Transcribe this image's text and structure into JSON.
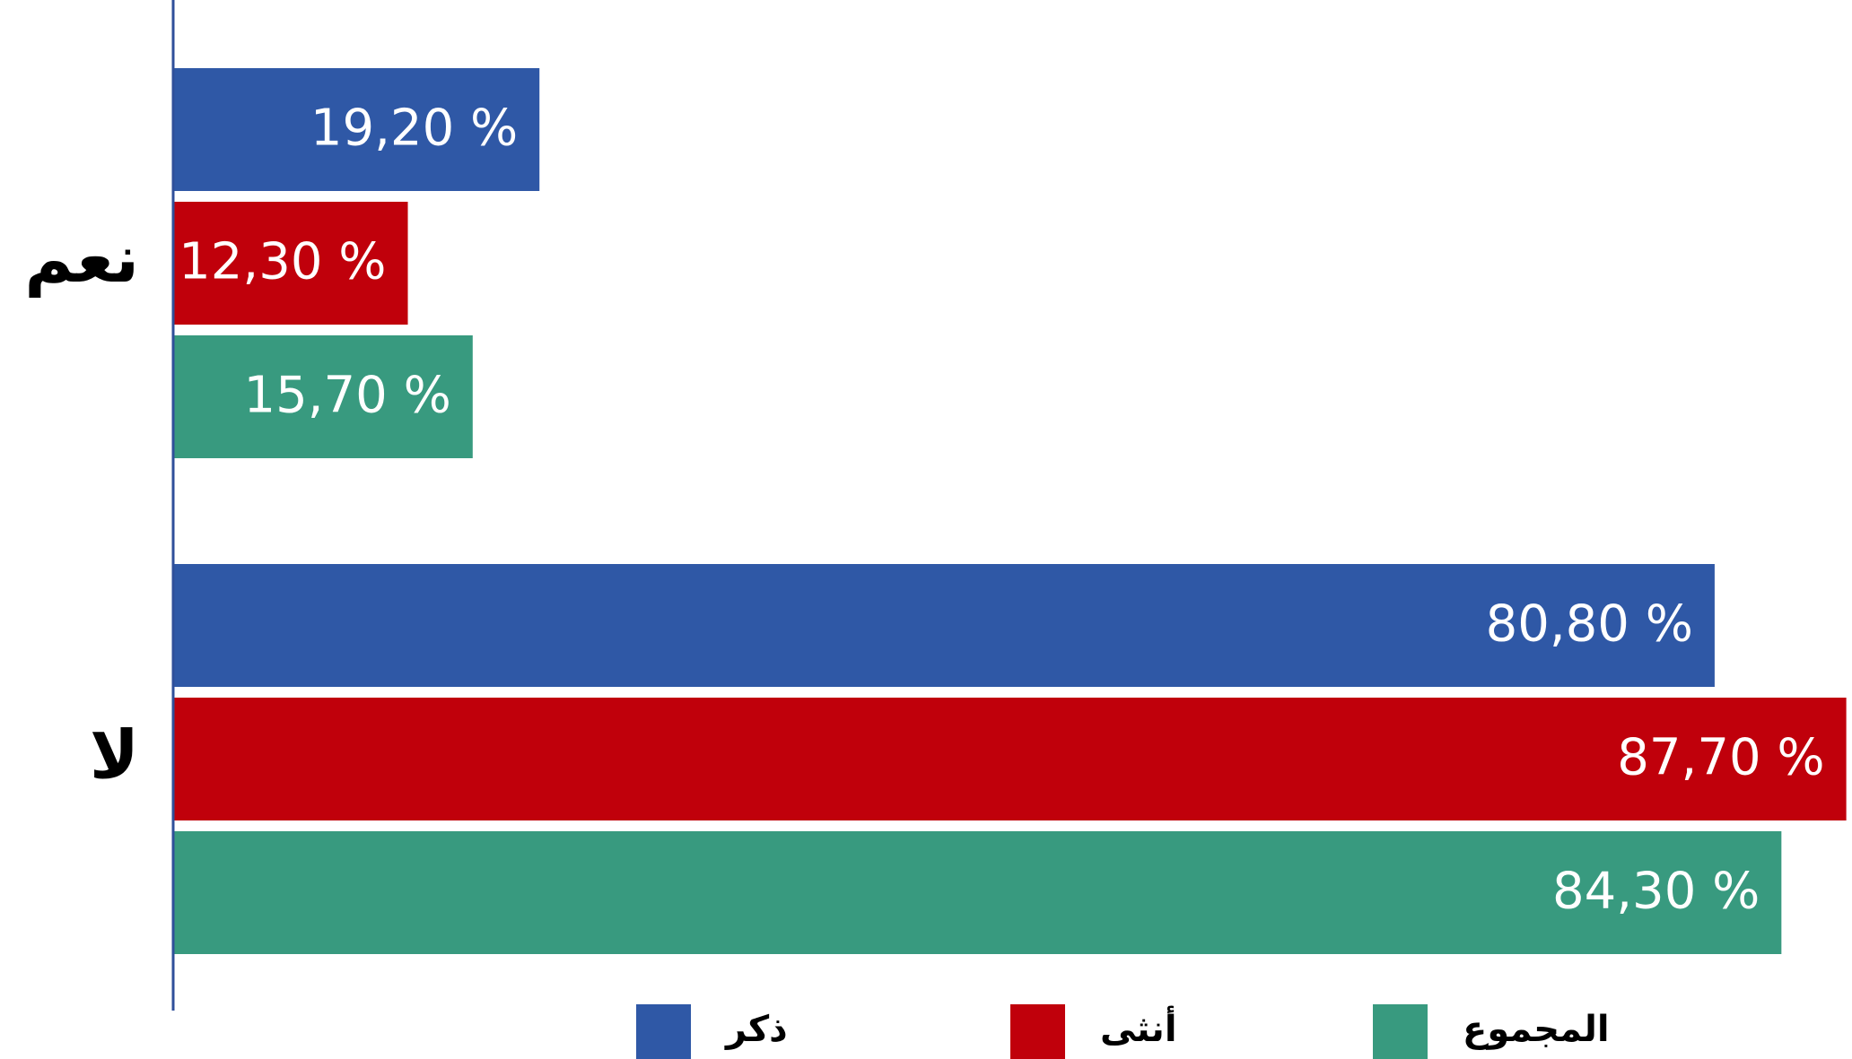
{
  "chart_data": {
    "type": "bar",
    "orientation": "horizontal",
    "categories": [
      "نعم",
      "لا"
    ],
    "series": [
      {
        "name": "ذكر",
        "color": "#2f58a6",
        "values": [
          19.2,
          80.8
        ],
        "value_labels": [
          "19,20 %",
          "80,80 %"
        ]
      },
      {
        "name": "أنثى",
        "color": "#c0000b",
        "values": [
          12.3,
          87.7
        ],
        "value_labels": [
          "12,30 %",
          "87,70 %"
        ]
      },
      {
        "name": "المجموع",
        "color": "#389a7f",
        "values": [
          15.7,
          84.3
        ],
        "value_labels": [
          "15,70 %",
          "84,30 %"
        ]
      }
    ],
    "xlim": [
      0,
      88
    ]
  }
}
